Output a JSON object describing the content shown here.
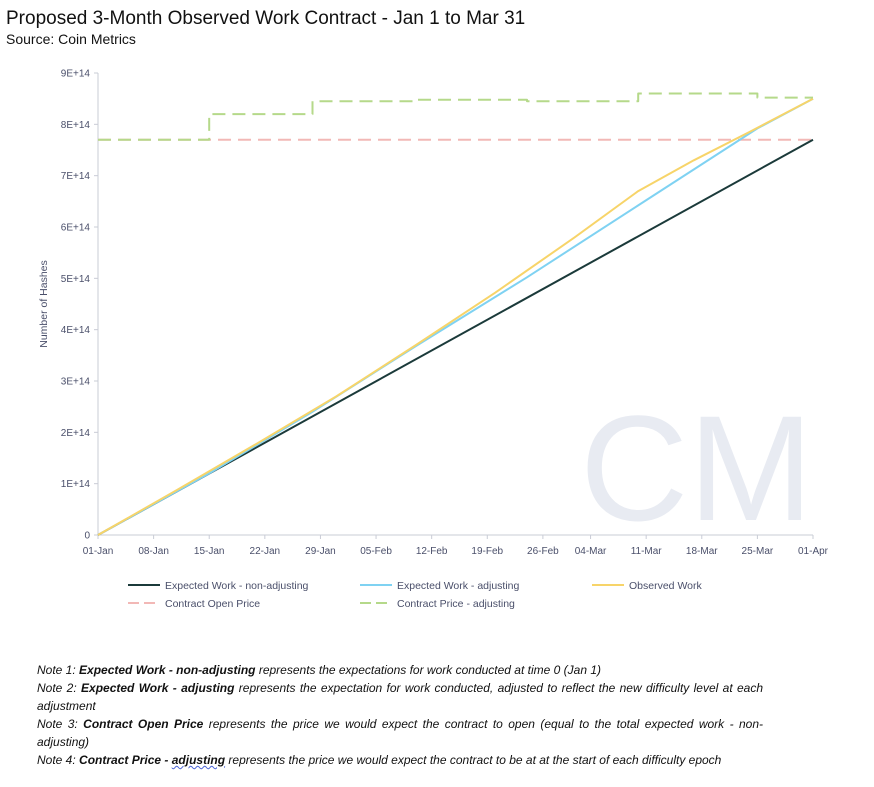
{
  "title": "Proposed 3-Month Observed Work Contract - Jan 1 to Mar 31",
  "subtitle": "Source: Coin Metrics",
  "watermark": "CM",
  "chart_data": {
    "type": "line",
    "title": "Proposed 3-Month Observed Work Contract - Jan 1 to Mar 31",
    "ylabel": "Number of Hashes",
    "xlabel": "",
    "ylim": [
      0,
      900000000000000.0
    ],
    "xlim": [
      0,
      90
    ],
    "y_tick_labels": [
      "0",
      "1E+14",
      "2E+14",
      "3E+14",
      "4E+14",
      "5E+14",
      "6E+14",
      "7E+14",
      "8E+14",
      "9E+14"
    ],
    "x_tick_labels": [
      "01-Jan",
      "08-Jan",
      "15-Jan",
      "22-Jan",
      "29-Jan",
      "05-Feb",
      "12-Feb",
      "19-Feb",
      "26-Feb",
      "04-Mar",
      "11-Mar",
      "18-Mar",
      "25-Mar",
      "01-Apr"
    ],
    "x_ticks_day": [
      0,
      7,
      14,
      21,
      28,
      35,
      42,
      49,
      56,
      62,
      69,
      76,
      83,
      90
    ],
    "grid": false,
    "legend_position": "bottom",
    "series": [
      {
        "name": "Expected Work - non-adjusting",
        "color": "#1b3a3a",
        "dash": "solid",
        "x": [
          0,
          90
        ],
        "y": [
          0,
          770000000000000.0
        ]
      },
      {
        "name": "Expected Work - adjusting",
        "color": "#7fd2f2",
        "dash": "solid",
        "x": [
          0,
          14,
          27,
          40,
          54,
          68,
          83,
          90
        ],
        "y": [
          0,
          120000000000000.0,
          240000000000000.0,
          368000000000000.0,
          502000000000000.0,
          642000000000000.0,
          792000000000000.0,
          850000000000000.0
        ]
      },
      {
        "name": "Observed Work",
        "color": "#f7d469",
        "dash": "solid",
        "x": [
          0,
          10,
          20,
          30,
          40,
          50,
          60,
          68,
          75,
          82,
          90
        ],
        "y": [
          0,
          88000000000000.0,
          178000000000000.0,
          270000000000000.0,
          370000000000000.0,
          472000000000000.0,
          580000000000000.0,
          670000000000000.0,
          730000000000000.0,
          785000000000000.0,
          850000000000000.0
        ]
      },
      {
        "name": "Contract Open Price",
        "color": "#f2b8b6",
        "dash": "dashed",
        "x": [
          0,
          90
        ],
        "y": [
          770000000000000.0,
          770000000000000.0
        ]
      },
      {
        "name": "Contract Price - adjusting",
        "color": "#b5d98a",
        "dash": "dashed",
        "x": [
          0,
          14,
          14,
          27,
          27,
          40,
          40,
          54,
          54,
          68,
          68,
          83,
          83,
          90
        ],
        "y": [
          770000000000000.0,
          770000000000000.0,
          820000000000000.0,
          820000000000000.0,
          845000000000000.0,
          845000000000000.0,
          848000000000000.0,
          848000000000000.0,
          845000000000000.0,
          845000000000000.0,
          860000000000000.0,
          860000000000000.0,
          852000000000000.0,
          852000000000000.0
        ]
      }
    ]
  },
  "notes": [
    {
      "prefix": "Note 1: ",
      "bold": "Expected Work - non-adjusting",
      "rest": " represents the expectations for work conducted at time 0 (Jan 1)"
    },
    {
      "prefix": "Note 2: ",
      "bold": "Expected Work - adjusting",
      "rest": " represents the expectation for work conducted, adjusted to reflect the new difficulty level at each adjustment"
    },
    {
      "prefix": "Note 3: ",
      "bold": "Contract Open Price",
      "rest": " represents the price we would expect the contract to open (equal to the total expected work - non-adjusting)"
    },
    {
      "prefix": "Note 4: ",
      "bold": "Contract Price - ",
      "bold_underlined": "adjusting",
      "rest": " represents the price we would expect the contract to be at at the start of each difficulty epoch"
    }
  ]
}
